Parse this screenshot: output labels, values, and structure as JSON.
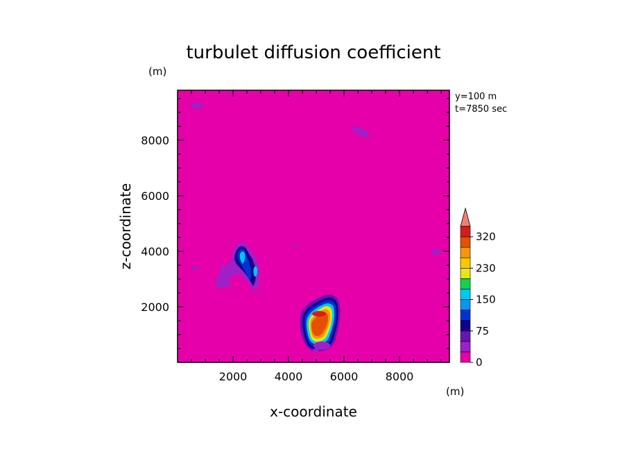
{
  "chart_data": {
    "type": "heatmap",
    "title": "turbulet diffusion coefficient",
    "xlabel": "x-coordinate",
    "ylabel": "z-coordinate",
    "x_unit": "(m)",
    "y_unit": "(m)",
    "xlim": [
      0,
      9800
    ],
    "ylim": [
      0,
      9800
    ],
    "x_ticks": [
      2000,
      4000,
      6000,
      8000
    ],
    "y_ticks": [
      2000,
      4000,
      6000,
      8000
    ],
    "annotations": [
      "y=100 m",
      "t=7850 sec"
    ],
    "colorbar": {
      "levels": [
        0,
        25,
        50,
        75,
        100,
        125,
        150,
        175,
        200,
        230,
        260,
        290,
        320
      ],
      "labels": [
        "0",
        "75",
        "150",
        "230",
        "320"
      ],
      "colors": [
        "#e600aa",
        "#a020c8",
        "#6a14b4",
        "#14008c",
        "#0032d2",
        "#0a96f0",
        "#00c8f0",
        "#14d250",
        "#e6e614",
        "#fac800",
        "#f5960a",
        "#e65000",
        "#d21e1e"
      ],
      "extend_color": "#f08070",
      "extend": "max"
    },
    "features": [
      {
        "name": "core-plume",
        "x": 5250,
        "z": 1600,
        "peak": 290
      },
      {
        "name": "small-cell",
        "x": 2600,
        "z": 3700,
        "peak": 150
      },
      {
        "name": "weak-patch-top-left",
        "x": 700,
        "z": 9350,
        "peak": 30
      },
      {
        "name": "weak-patch-top-right",
        "x": 6700,
        "z": 8450,
        "peak": 30
      },
      {
        "name": "weak-patch-right",
        "x": 9450,
        "z": 4050,
        "peak": 30
      },
      {
        "name": "weak-patch-left",
        "x": 600,
        "z": 3450,
        "peak": 30
      }
    ]
  }
}
